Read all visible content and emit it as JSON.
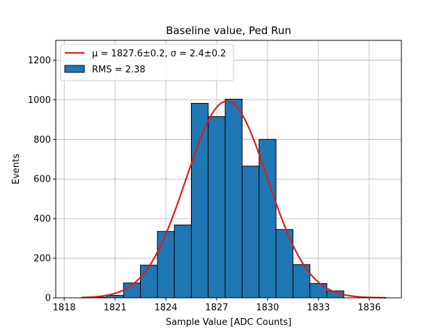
{
  "chart_data": {
    "type": "bar",
    "title": "Baseline value, Ped Run",
    "xlabel": "Sample Value [ADC Counts]",
    "ylabel": "Events",
    "xlim": [
      1817.5,
      1837.9
    ],
    "ylim": [
      0,
      1300
    ],
    "grid": true,
    "legend_placement": "top-left",
    "x_ticks": [
      1818,
      1821,
      1824,
      1827,
      1830,
      1833,
      1836
    ],
    "y_ticks": [
      0,
      200,
      400,
      600,
      800,
      1000,
      1200
    ],
    "histogram": {
      "name": "RMS = 2.38",
      "color": "#1f77b4",
      "edge_color": "#000000",
      "bin_edges": [
        1819.5,
        1820.5,
        1821.5,
        1822.5,
        1823.5,
        1824.5,
        1825.5,
        1826.5,
        1827.5,
        1828.5,
        1829.5,
        1830.5,
        1831.5,
        1832.5,
        1833.5,
        1834.5
      ],
      "counts": [
        3,
        12,
        75,
        165,
        335,
        368,
        982,
        915,
        1003,
        665,
        800,
        345,
        168,
        72,
        35
      ]
    },
    "fit": {
      "name_math": "μ = 1827.6±0.2, σ = 2.4±0.2",
      "color": "#e01a1a",
      "mu": 1827.6,
      "sigma": 2.4,
      "amplitude": 993,
      "x_range": [
        1819,
        1837
      ]
    }
  }
}
